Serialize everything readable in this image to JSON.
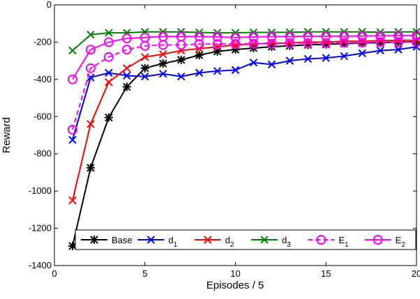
{
  "chart_data": {
    "type": "line",
    "x_label": "Episodes / 5",
    "y_label": "Reward",
    "x": [
      1,
      2,
      3,
      4,
      5,
      6,
      7,
      8,
      9,
      10,
      11,
      12,
      13,
      14,
      15,
      16,
      17,
      18,
      19,
      20
    ],
    "xlim": [
      0,
      20
    ],
    "xticks": [
      0,
      5,
      10,
      15,
      20
    ],
    "ylim": [
      -1400,
      0
    ],
    "yticks": [
      -1400,
      -1200,
      -1000,
      -800,
      -600,
      -400,
      -200,
      0
    ],
    "grid": false,
    "legend": "bottom",
    "series": [
      {
        "name": "Base",
        "color": "#000000",
        "marker": "asterisk",
        "dash": false,
        "values": [
          -1295,
          -875,
          -605,
          -440,
          -340,
          -315,
          -295,
          -270,
          -250,
          -240,
          -232,
          -225,
          -220,
          -215,
          -212,
          -208,
          -205,
          -203,
          -200,
          -198
        ]
      },
      {
        "name": "d1",
        "color": "#0000ff",
        "marker": "x",
        "dash": false,
        "values": [
          -725,
          -390,
          -365,
          -380,
          -385,
          -370,
          -385,
          -365,
          -355,
          -350,
          -310,
          -320,
          -300,
          -290,
          -285,
          -275,
          -260,
          -245,
          -240,
          -225
        ]
      },
      {
        "name": "d2",
        "color": "#ff0000",
        "marker": "x",
        "dash": false,
        "values": [
          -1050,
          -640,
          -415,
          -340,
          -280,
          -265,
          -245,
          -235,
          -225,
          -215,
          -210,
          -205,
          -205,
          -200,
          -200,
          -195,
          -195,
          -192,
          -190,
          -190
        ]
      },
      {
        "name": "d3",
        "color": "#008000",
        "marker": "x",
        "dash": false,
        "values": [
          -245,
          -160,
          -150,
          -150,
          -145,
          -145,
          -145,
          -148,
          -150,
          -150,
          -148,
          -148,
          -147,
          -145,
          -145,
          -145,
          -145,
          -147,
          -145,
          -145
        ]
      },
      {
        "name": "E1",
        "color": "#ff00ff",
        "marker": "circle",
        "dash": true,
        "values": [
          -670,
          -340,
          -280,
          -240,
          -220,
          -215,
          -215,
          -210,
          -210,
          -210,
          -208,
          -208,
          -205,
          -205,
          -205,
          -203,
          -203,
          -200,
          -200,
          -200
        ]
      },
      {
        "name": "E2",
        "color": "#ff00ff",
        "marker": "circle",
        "dash": false,
        "values": [
          -400,
          -240,
          -200,
          -180,
          -175,
          -170,
          -170,
          -170,
          -172,
          -175,
          -172,
          -170,
          -170,
          -168,
          -168,
          -168,
          -167,
          -166,
          -165,
          -165
        ]
      }
    ]
  }
}
